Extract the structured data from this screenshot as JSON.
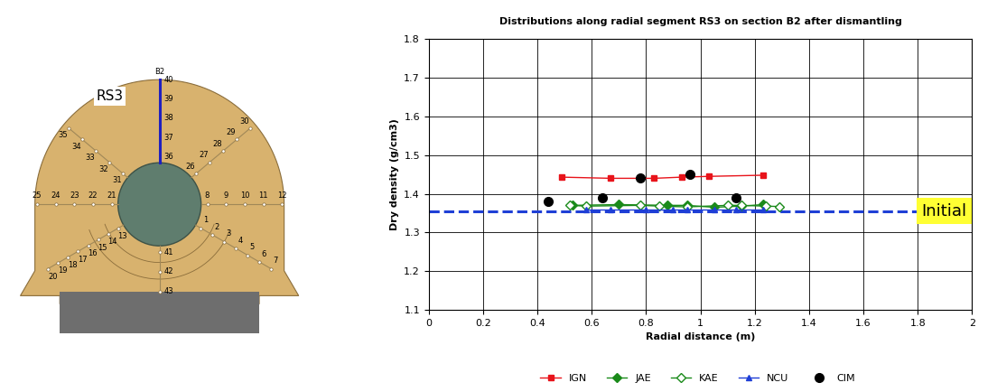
{
  "diagram": {
    "section": "B2",
    "segment": "RS3",
    "radial_lines": [
      [
        1,
        2,
        3,
        4,
        5,
        6,
        7
      ],
      [
        8,
        9,
        10,
        11,
        12
      ],
      [
        13,
        14,
        15,
        16,
        17,
        18,
        19,
        20
      ],
      [
        21,
        22,
        23,
        24,
        25
      ],
      [
        26,
        27,
        28,
        29,
        30
      ],
      [
        31,
        32,
        33,
        34,
        35
      ],
      [
        36,
        37,
        38,
        39,
        40
      ],
      [
        41,
        42,
        43
      ]
    ]
  },
  "chart_data": {
    "type": "line",
    "title": "Distributions along radial segment RS3 on section B2 after dismantling",
    "x_label": "Radial distance (m)",
    "y_label": "Dry density (g/cm3)",
    "xlim": [
      0,
      2
    ],
    "xticks": [
      0,
      0.2,
      0.4,
      0.6,
      0.8,
      1,
      1.2,
      1.4,
      1.6,
      1.8,
      2
    ],
    "ylim": [
      1.1,
      1.8
    ],
    "yticks": [
      1.1,
      1.2,
      1.3,
      1.4,
      1.5,
      1.6,
      1.7,
      1.8
    ],
    "grid": true,
    "legend": "lower center",
    "reference_line": {
      "value": 1.355,
      "label": "Initial",
      "color": "#1f3fd6"
    },
    "series": [
      {
        "name": "IGN",
        "color": "#e8141b",
        "marker": "square",
        "line_style": "solid",
        "x": [
          0.49,
          0.67,
          0.83,
          0.93,
          1.03,
          1.23
        ],
        "values": [
          1.443,
          1.44,
          1.44,
          1.443,
          1.445,
          1.448
        ]
      },
      {
        "name": "JAE",
        "color": "#1a8a1a",
        "marker": "diamond",
        "line_style": "solid",
        "x": [
          0.53,
          0.7,
          0.88,
          0.95,
          1.05,
          1.15,
          1.23
        ],
        "values": [
          1.37,
          1.372,
          1.37,
          1.37,
          1.365,
          1.368,
          1.372
        ]
      },
      {
        "name": "KAE",
        "color": "#1a8a1a",
        "marker": "open_diamond",
        "line_style": "solid",
        "x": [
          0.52,
          0.58,
          0.78,
          0.85,
          0.95,
          1.1,
          1.15,
          1.24,
          1.29
        ],
        "values": [
          1.37,
          1.368,
          1.37,
          1.368,
          1.366,
          1.37,
          1.37,
          1.368,
          1.367
        ]
      },
      {
        "name": "NCU",
        "color": "#1f3fd6",
        "marker": "triangle",
        "line_style": "solid",
        "x": [
          0.58,
          0.67,
          0.8,
          0.9,
          0.95,
          1.05,
          1.13,
          1.23
        ],
        "values": [
          1.36,
          1.36,
          1.36,
          1.36,
          1.36,
          1.36,
          1.36,
          1.36
        ]
      },
      {
        "name": "CIM",
        "color": "#000000",
        "marker": "circle",
        "line_style": "none",
        "x": [
          0.44,
          0.64,
          0.78,
          0.96,
          1.13
        ],
        "values": [
          1.38,
          1.39,
          1.44,
          1.45,
          1.39
        ]
      }
    ]
  }
}
